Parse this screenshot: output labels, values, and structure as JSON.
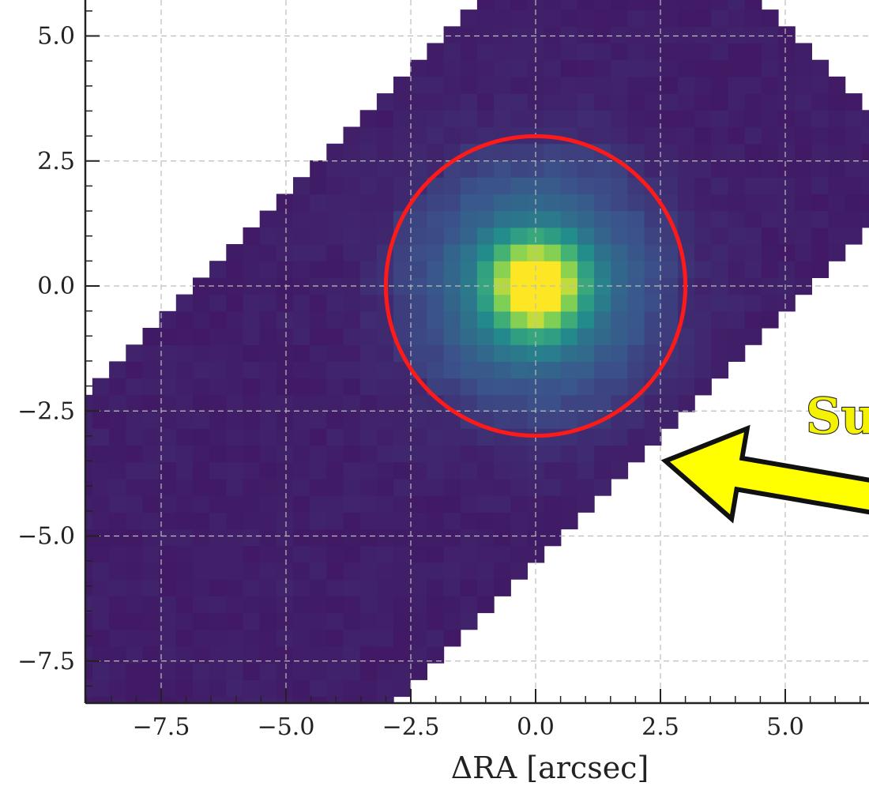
{
  "chart_data": {
    "type": "heatmap",
    "title": "",
    "xlabel": "ΔRA [arcsec]",
    "ylabel": "",
    "xlim": [
      -9.0,
      9.0
    ],
    "ylim": [
      -8.2,
      6.0
    ],
    "xticks": [
      "−7.5",
      "−5.0",
      "−2.5",
      "0.0",
      "2.5",
      "5.0"
    ],
    "yticks": [
      "5.0",
      "2.5",
      "0.0",
      "−2.5",
      "−5.0",
      "−7.5"
    ],
    "xtick_values": [
      -7.5,
      -5.0,
      -2.5,
      0.0,
      2.5,
      5.0
    ],
    "ytick_values": [
      5.0,
      2.5,
      0.0,
      -2.5,
      -5.0,
      -7.5
    ],
    "grid": true,
    "colormap": "viridis",
    "background_color": "#46246e",
    "peak": {
      "x": 0.0,
      "y": 0.0
    },
    "aperture": {
      "center": [
        0.0,
        0.0
      ],
      "radius_arcsec": 3.0,
      "color": "#ff1a1a"
    },
    "annotation": {
      "text": "Su",
      "arrow_color": "#ffff00",
      "arrow_tip": [
        2.6,
        -3.5
      ],
      "arrow_tail": [
        9.0,
        -4.6
      ]
    }
  }
}
